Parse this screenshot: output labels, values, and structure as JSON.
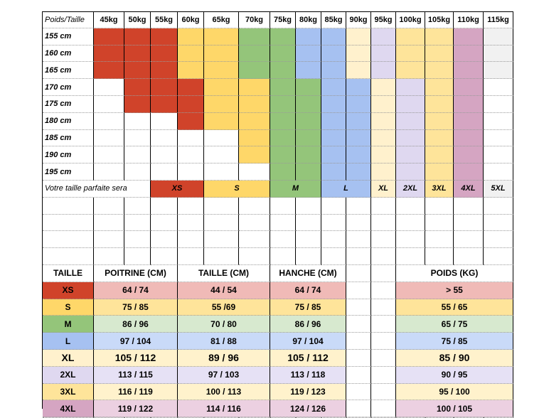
{
  "colors": {
    "XS": "#d0432a",
    "S": "#fed769",
    "M": "#94c57a",
    "L": "#a6c1f1",
    "XL": "#fff1cd",
    "2XL": "#dfd8f0",
    "3XL": "#fee49a",
    "4XL": "#d5a5c2",
    "5XL": "#f1f1f1"
  },
  "pastel": {
    "XS": "#f0bab7",
    "S": "#fee49a",
    "M": "#d7e9cf",
    "L": "#c9daf8",
    "XL": "#fff2cc",
    "2XL": "#e6e1f5",
    "3XL": "#fff2cc",
    "4XL": "#ecd0e1"
  },
  "grid": {
    "corner": "Poids/Taille",
    "weights": [
      "45kg",
      "50kg",
      "55kg",
      "60kg",
      "65kg",
      "70kg",
      "75kg",
      "80kg",
      "85kg",
      "90kg",
      "95kg",
      "100kg",
      "105kg",
      "110kg",
      "115kg"
    ],
    "heights": [
      "155 cm",
      "160 cm",
      "165 cm",
      "170 cm",
      "175 cm",
      "180 cm",
      "185 cm",
      "190 cm",
      "195 cm"
    ],
    "fills": [
      [
        "XS",
        "XS",
        "XS",
        "S",
        "S",
        "M",
        "M",
        "L",
        "L",
        "XL",
        "2XL",
        "3XL",
        "3XL",
        "4XL",
        "5XL"
      ],
      [
        "XS",
        "XS",
        "XS",
        "S",
        "S",
        "M",
        "M",
        "L",
        "L",
        "XL",
        "2XL",
        "3XL",
        "3XL",
        "4XL",
        "5XL"
      ],
      [
        "XS",
        "XS",
        "XS",
        "S",
        "S",
        "M",
        "M",
        "L",
        "L",
        "XL",
        "2XL",
        "3XL",
        "3XL",
        "4XL",
        "5XL"
      ],
      [
        "",
        "XS",
        "XS",
        "XS",
        "S",
        "S",
        "M",
        "M",
        "L",
        "L",
        "XL",
        "2XL",
        "3XL",
        "4XL",
        ""
      ],
      [
        "",
        "XS",
        "XS",
        "XS",
        "S",
        "S",
        "M",
        "M",
        "L",
        "L",
        "XL",
        "2XL",
        "3XL",
        "4XL",
        ""
      ],
      [
        "",
        "",
        "",
        "XS",
        "S",
        "S",
        "M",
        "M",
        "L",
        "L",
        "XL",
        "2XL",
        "3XL",
        "4XL",
        ""
      ],
      [
        "",
        "",
        "",
        "",
        "",
        "S",
        "M",
        "M",
        "L",
        "L",
        "XL",
        "2XL",
        "3XL",
        "4XL",
        ""
      ],
      [
        "",
        "",
        "",
        "",
        "",
        "S",
        "M",
        "M",
        "L",
        "L",
        "XL",
        "2XL",
        "3XL",
        "4XL",
        ""
      ],
      [
        "",
        "",
        "",
        "",
        "",
        "",
        "M",
        "M",
        "L",
        "L",
        "XL",
        "2XL",
        "3XL",
        "4XL",
        ""
      ]
    ],
    "result_label": "Votre taille parfaite sera",
    "result_row": [
      "",
      "",
      "XS",
      "XS",
      "S",
      "S",
      "M",
      "M",
      "L",
      "L",
      "XL",
      "2XL",
      "3XL",
      "4XL",
      "5XL"
    ]
  },
  "size_table": {
    "headers": [
      "TAILLE",
      "POITRINE (CM)",
      "TAILLE (CM)",
      "HANCHE (CM)",
      "POIDS (KG)"
    ],
    "rows": [
      {
        "size": "XS",
        "poitrine": "64 / 74",
        "taille": "44 / 54",
        "hanche": "64 / 74",
        "poids": "> 55"
      },
      {
        "size": "S",
        "poitrine": "75 / 85",
        "taille": "55 /69",
        "hanche": "75 / 85",
        "poids": "55 / 65"
      },
      {
        "size": "M",
        "poitrine": "86 / 96",
        "taille": "70 / 80",
        "hanche": "86 / 96",
        "poids": "65 / 75"
      },
      {
        "size": "L",
        "poitrine": "97 / 104",
        "taille": "81 / 88",
        "hanche": "97 / 104",
        "poids": "75 / 85"
      },
      {
        "size": "XL",
        "poitrine": "105 / 112",
        "taille": "89 / 96",
        "hanche": "105 / 112",
        "poids": "85 / 90"
      },
      {
        "size": "2XL",
        "poitrine": "113 / 115",
        "taille": "97 / 103",
        "hanche": "113 / 118",
        "poids": "90 / 95"
      },
      {
        "size": "3XL",
        "poitrine": "116 / 119",
        "taille": "100 / 113",
        "hanche": "119 / 123",
        "poids": "95 / 100"
      },
      {
        "size": "4XL",
        "poitrine": "119 / 122",
        "taille": "114 / 116",
        "hanche": "124 / 126",
        "poids": "100 / 105"
      }
    ]
  }
}
